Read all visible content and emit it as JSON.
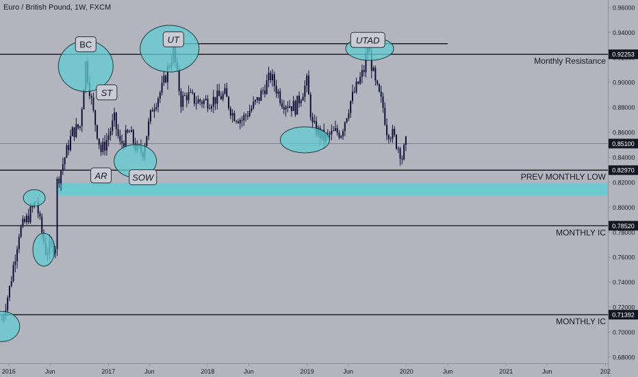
{
  "header": {
    "symbol_title": "Euro / British Pound, 1W, FXCM"
  },
  "colors": {
    "background": "#b2b5be",
    "candle": "#0d1036",
    "zone_fill": "#62cdd1",
    "zone_stroke": "#1a3a3d",
    "level_line": "#000000",
    "tag_background": "#131722",
    "label_box": "#c9ccd3",
    "axis_text": "#131722"
  },
  "chart_data": {
    "type": "candlestick",
    "title": "Euro / British Pound, 1W, FXCM",
    "x_axis": {
      "range": [
        "2015-11-30",
        "2022-01-10"
      ],
      "ticks": [
        {
          "label": "2016",
          "date": "2016-01-01"
        },
        {
          "label": "Jun",
          "date": "2016-06-01"
        },
        {
          "label": "2017",
          "date": "2017-01-01"
        },
        {
          "label": "Jun",
          "date": "2017-06-01"
        },
        {
          "label": "2018",
          "date": "2018-01-01"
        },
        {
          "label": "Jun",
          "date": "2018-06-01"
        },
        {
          "label": "2019",
          "date": "2019-01-01"
        },
        {
          "label": "Jun",
          "date": "2019-06-01"
        },
        {
          "label": "2020",
          "date": "2020-01-01"
        },
        {
          "label": "Jun",
          "date": "2020-06-01"
        },
        {
          "label": "2021",
          "date": "2021-01-01"
        },
        {
          "label": "Jun",
          "date": "2021-06-01"
        },
        {
          "label": "202",
          "date": "2022-01-01"
        }
      ]
    },
    "y_axis": {
      "range": [
        0.675,
        0.966
      ],
      "ticks": [
        "0.96000",
        "0.94000",
        "0.92000",
        "0.90000",
        "0.88000",
        "0.86000",
        "0.84000",
        "0.82000",
        "0.80000",
        "0.78000",
        "0.76000",
        "0.74000",
        "0.72000",
        "0.70000",
        "0.68000"
      ]
    },
    "price_path": [
      [
        "2015-12-07",
        0.71
      ],
      [
        "2016-01-04",
        0.735
      ],
      [
        "2016-02-08",
        0.78
      ],
      [
        "2016-03-07",
        0.79
      ],
      [
        "2016-04-11",
        0.805
      ],
      [
        "2016-04-25",
        0.787
      ],
      [
        "2016-05-16",
        0.765
      ],
      [
        "2016-06-20",
        0.77
      ],
      [
        "2016-06-27",
        0.82
      ],
      [
        "2016-07-25",
        0.84
      ],
      [
        "2016-08-22",
        0.86
      ],
      [
        "2016-09-19",
        0.865
      ],
      [
        "2016-10-10",
        0.915
      ],
      [
        "2016-11-07",
        0.875
      ],
      [
        "2016-12-05",
        0.845
      ],
      [
        "2016-12-19",
        0.85
      ],
      [
        "2017-01-23",
        0.87
      ],
      [
        "2017-02-13",
        0.85
      ],
      [
        "2017-03-20",
        0.86
      ],
      [
        "2017-04-17",
        0.845
      ],
      [
        "2017-05-08",
        0.845
      ],
      [
        "2017-06-12",
        0.88
      ],
      [
        "2017-07-17",
        0.895
      ],
      [
        "2017-08-14",
        0.915
      ],
      [
        "2017-08-28",
        0.925
      ],
      [
        "2017-09-25",
        0.885
      ],
      [
        "2017-10-16",
        0.89
      ],
      [
        "2017-11-20",
        0.885
      ],
      [
        "2018-01-08",
        0.885
      ],
      [
        "2018-03-05",
        0.89
      ],
      [
        "2018-04-02",
        0.875
      ],
      [
        "2018-05-07",
        0.87
      ],
      [
        "2018-07-02",
        0.885
      ],
      [
        "2018-08-20",
        0.905
      ],
      [
        "2018-10-01",
        0.885
      ],
      [
        "2018-11-19",
        0.88
      ],
      [
        "2018-12-31",
        0.9
      ],
      [
        "2019-01-21",
        0.865
      ],
      [
        "2019-03-04",
        0.855
      ],
      [
        "2019-04-15",
        0.86
      ],
      [
        "2019-05-06",
        0.86
      ],
      [
        "2019-06-10",
        0.885
      ],
      [
        "2019-07-29",
        0.91
      ],
      [
        "2019-08-12",
        0.93
      ],
      [
        "2019-09-09",
        0.898
      ],
      [
        "2019-10-07",
        0.88
      ],
      [
        "2019-10-21",
        0.862
      ],
      [
        "2019-11-11",
        0.858
      ],
      [
        "2019-12-09",
        0.845
      ],
      [
        "2019-12-16",
        0.84
      ],
      [
        "2019-12-30",
        0.851
      ]
    ],
    "horizontal_levels": [
      {
        "value": 0.9225,
        "tag": "0.92253",
        "label": "Monthly Resistance"
      },
      {
        "value": 0.8297,
        "tag": "0.82970",
        "label": "PREV MONTHLY LOW"
      },
      {
        "value": 0.7852,
        "tag": "0.78520",
        "label": "MONTHLY IC"
      },
      {
        "value": 0.71392,
        "tag": "0.71392",
        "label": "MONTHLY IC"
      }
    ],
    "current_price": {
      "value": 0.851,
      "tag": "0.85100"
    },
    "top_line": {
      "value": 0.931,
      "from": "2017-07-31",
      "to": "2020-06-01"
    },
    "zone_band": {
      "from": 0.8095,
      "to": 0.8195,
      "start": "2016-06-27"
    },
    "event_labels": [
      {
        "text": "BC",
        "date": "2016-10-10",
        "price": 0.9305,
        "italic": false
      },
      {
        "text": "ST",
        "date": "2016-12-26",
        "price": 0.892,
        "italic": true
      },
      {
        "text": "AR",
        "date": "2016-12-05",
        "price": 0.8255,
        "italic": true
      },
      {
        "text": "SOW",
        "date": "2017-05-08",
        "price": 0.824,
        "italic": true
      },
      {
        "text": "UT",
        "date": "2017-08-28",
        "price": 0.9345,
        "italic": true
      },
      {
        "text": "UTAD",
        "date": "2019-08-12",
        "price": 0.934,
        "italic": true
      }
    ],
    "zones": [
      {
        "name": "BC",
        "date": "2016-10-10",
        "price": 0.913
      },
      {
        "name": "UT",
        "date": "2017-08-14",
        "price": 0.927
      },
      {
        "name": "UTAD",
        "date": "2019-08-19",
        "price": 0.927
      },
      {
        "name": "SOW",
        "date": "2017-04-10",
        "price": 0.837
      },
      {
        "name": "spring",
        "date": "2018-12-24",
        "price": 0.854
      },
      {
        "name": "left-high",
        "date": "2016-04-04",
        "price": 0.8075
      },
      {
        "name": "left-low",
        "date": "2016-05-09",
        "price": 0.766
      },
      {
        "name": "origin",
        "date": "2015-12-07",
        "price": 0.7045
      }
    ]
  }
}
